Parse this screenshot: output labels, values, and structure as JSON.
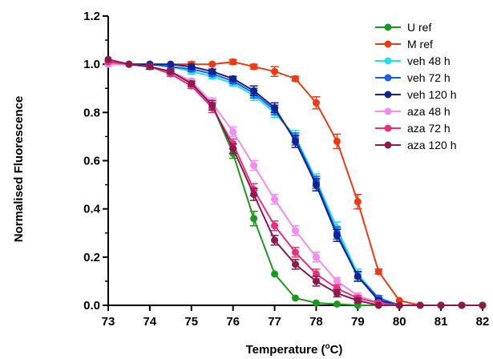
{
  "chart_data": {
    "type": "line",
    "title": "",
    "xlabel": "Temperature (",
    "xlabel_sup": "o",
    "xlabel_unit": "C)",
    "ylabel": "Normalised Fluorescence",
    "xlim": [
      73,
      82
    ],
    "ylim": [
      0,
      1.2
    ],
    "xticks": [
      73,
      74,
      75,
      76,
      77,
      78,
      79,
      80,
      81,
      82
    ],
    "yticks": [
      0.0,
      0.2,
      0.4,
      0.6,
      0.8,
      1.0,
      1.2
    ],
    "ytick_labels": [
      "0.0",
      "0.2",
      "0.4",
      "0.6",
      "0.8",
      "1.0",
      "1.2"
    ],
    "grid": false,
    "legend_position": "top-right",
    "series": [
      {
        "name": "U ref",
        "color": "#1a9a1a",
        "x": [
          73,
          73.5,
          74,
          74.5,
          75,
          75.5,
          76,
          76.5,
          77,
          77.5,
          78,
          78.5,
          79,
          79.5,
          80,
          80.5,
          81,
          81.5,
          82
        ],
        "y": [
          1.01,
          1.0,
          0.99,
          0.97,
          0.93,
          0.83,
          0.63,
          0.36,
          0.13,
          0.03,
          0.01,
          0.005,
          0.0,
          0.0,
          0.0,
          0.0,
          0.0,
          0.0,
          0.0
        ],
        "err": [
          0,
          0,
          0,
          0,
          0,
          0.01,
          0.02,
          0.03,
          0,
          0,
          0,
          0,
          0,
          0,
          0,
          0,
          0,
          0,
          0
        ]
      },
      {
        "name": "M ref",
        "color": "#ee3a14",
        "x": [
          73,
          73.5,
          74,
          74.5,
          75,
          75.5,
          76,
          76.5,
          77,
          77.5,
          78,
          78.5,
          79,
          79.5,
          80,
          80.5,
          81,
          81.5,
          82
        ],
        "y": [
          1.0,
          1.0,
          1.0,
          1.0,
          1.0,
          1.0,
          1.01,
          0.99,
          0.97,
          0.94,
          0.84,
          0.68,
          0.43,
          0.14,
          0.02,
          0.0,
          0.0,
          0.0,
          0.0
        ],
        "err": [
          0,
          0,
          0,
          0,
          0.01,
          0,
          0.01,
          0.01,
          0.02,
          0.01,
          0.025,
          0.03,
          0.03,
          0.01,
          0,
          0,
          0,
          0,
          0
        ]
      },
      {
        "name": "veh 48 h",
        "color": "#22e0e8",
        "x": [
          73,
          73.5,
          74,
          74.5,
          75,
          75.5,
          76,
          76.5,
          77,
          77.5,
          78,
          78.5,
          79,
          79.5,
          80,
          80.5,
          81,
          81.5,
          82
        ],
        "y": [
          1.0,
          1.0,
          1.0,
          0.99,
          0.97,
          0.95,
          0.92,
          0.87,
          0.8,
          0.7,
          0.52,
          0.32,
          0.13,
          0.03,
          0.0,
          0.0,
          0.0,
          0.0,
          0.0
        ],
        "err": [
          0,
          0,
          0,
          0,
          0.01,
          0.01,
          0.01,
          0.02,
          0.02,
          0.025,
          0.025,
          0.025,
          0.02,
          0.01,
          0,
          0,
          0,
          0,
          0
        ]
      },
      {
        "name": "veh 72 h",
        "color": "#1a5cf0",
        "x": [
          73,
          73.5,
          74,
          74.5,
          75,
          75.5,
          76,
          76.5,
          77,
          77.5,
          78,
          78.5,
          79,
          79.5,
          80,
          80.5,
          81,
          81.5,
          82
        ],
        "y": [
          1.01,
          1.0,
          1.0,
          0.99,
          0.98,
          0.96,
          0.93,
          0.88,
          0.81,
          0.69,
          0.51,
          0.3,
          0.12,
          0.03,
          0.0,
          0.0,
          0.0,
          0.0,
          0.0
        ],
        "err": [
          0,
          0,
          0,
          0,
          0.01,
          0.01,
          0.01,
          0.02,
          0.02,
          0.025,
          0.025,
          0.025,
          0.02,
          0.01,
          0,
          0,
          0,
          0,
          0
        ]
      },
      {
        "name": "veh 120 h",
        "color": "#13238f",
        "x": [
          73,
          73.5,
          74,
          74.5,
          75,
          75.5,
          76,
          76.5,
          77,
          77.5,
          78,
          78.5,
          79,
          79.5,
          80,
          80.5,
          81,
          81.5,
          82
        ],
        "y": [
          1.01,
          1.0,
          1.0,
          1.0,
          0.99,
          0.97,
          0.94,
          0.89,
          0.82,
          0.68,
          0.5,
          0.29,
          0.12,
          0.02,
          0.0,
          0.0,
          0.0,
          0.0,
          0.0
        ],
        "err": [
          0,
          0,
          0,
          0,
          0.01,
          0.01,
          0.01,
          0.02,
          0.02,
          0.025,
          0.025,
          0.025,
          0.02,
          0.01,
          0,
          0,
          0,
          0,
          0
        ]
      },
      {
        "name": "aza 48 h",
        "color": "#f58af0",
        "x": [
          73,
          73.5,
          74,
          74.5,
          75,
          75.5,
          76,
          76.5,
          77,
          77.5,
          78,
          78.5,
          79,
          79.5,
          80,
          80.5,
          81,
          81.5,
          82
        ],
        "y": [
          1.0,
          1.0,
          0.99,
          0.97,
          0.93,
          0.84,
          0.72,
          0.58,
          0.44,
          0.31,
          0.2,
          0.1,
          0.04,
          0.01,
          0.0,
          0.0,
          0.0,
          0.0,
          0.0
        ],
        "err": [
          0,
          0,
          0.01,
          0.01,
          0.01,
          0.02,
          0.02,
          0.02,
          0.02,
          0.02,
          0.02,
          0.015,
          0.01,
          0,
          0,
          0,
          0,
          0,
          0
        ]
      },
      {
        "name": "aza 72 h",
        "color": "#e8307e",
        "x": [
          73,
          73.5,
          74,
          74.5,
          75,
          75.5,
          76,
          76.5,
          77,
          77.5,
          78,
          78.5,
          79,
          79.5,
          80,
          80.5,
          81,
          81.5,
          82
        ],
        "y": [
          1.01,
          1.0,
          0.99,
          0.96,
          0.91,
          0.82,
          0.67,
          0.48,
          0.33,
          0.22,
          0.13,
          0.07,
          0.03,
          0.01,
          0.0,
          0.0,
          0.0,
          0.0,
          0.0
        ],
        "err": [
          0,
          0,
          0.01,
          0.01,
          0.01,
          0.02,
          0.02,
          0.025,
          0.02,
          0.02,
          0.02,
          0.015,
          0.01,
          0,
          0,
          0,
          0,
          0,
          0
        ]
      },
      {
        "name": "aza 120 h",
        "color": "#8c1a4c",
        "x": [
          73,
          73.5,
          74,
          74.5,
          75,
          75.5,
          76,
          76.5,
          77,
          77.5,
          78,
          78.5,
          79,
          79.5,
          80,
          80.5,
          81,
          81.5,
          82
        ],
        "y": [
          1.02,
          1.0,
          0.99,
          0.97,
          0.92,
          0.83,
          0.65,
          0.46,
          0.27,
          0.17,
          0.1,
          0.05,
          0.02,
          0.0,
          0.0,
          0.0,
          0.0,
          0.0,
          0.0
        ],
        "err": [
          0,
          0,
          0.01,
          0.01,
          0.01,
          0.02,
          0.02,
          0.025,
          0.02,
          0.02,
          0.02,
          0.015,
          0.01,
          0,
          0,
          0,
          0,
          0,
          0
        ]
      }
    ]
  }
}
